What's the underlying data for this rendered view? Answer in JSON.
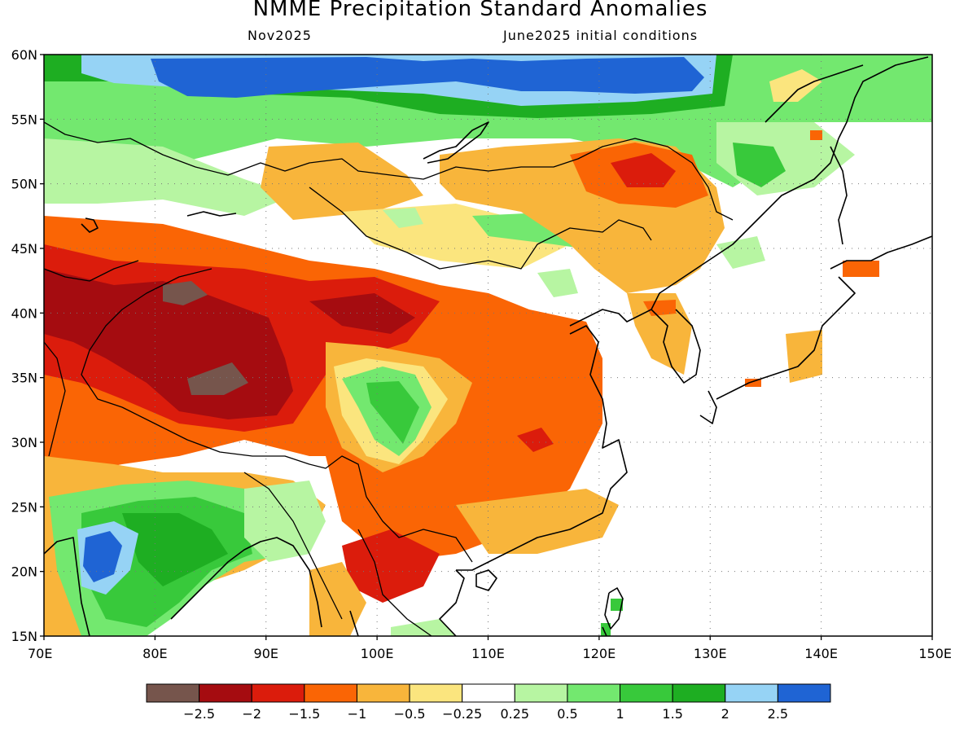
{
  "title": "NMME Precipitation Standard Anomalies",
  "subtitle_left": "Nov2025",
  "subtitle_right": "June2025 initial conditions",
  "latitude_labels": [
    "60N",
    "55N",
    "50N",
    "45N",
    "40N",
    "35N",
    "30N",
    "25N",
    "20N",
    "15N"
  ],
  "longitude_labels": [
    "70E",
    "80E",
    "90E",
    "100E",
    "110E",
    "120E",
    "130E",
    "140E",
    "150E"
  ],
  "colorbar": {
    "labels": [
      "−2.5",
      "−2",
      "−1.5",
      "−1",
      "−0.5",
      "−0.25",
      "0.25",
      "0.5",
      "1",
      "1.5",
      "2",
      "2.5"
    ],
    "colors": [
      "#76554c",
      "#a50c10",
      "#db1c0c",
      "#fa6505",
      "#f8b53b",
      "#fbe57e",
      "#ffffff",
      "#b7f5a2",
      "#73e86f",
      "#38c93b",
      "#1eae22",
      "#96d3f5",
      "#1f64d4"
    ]
  },
  "palette": {
    "brown": "#76554c",
    "darkred": "#a50c10",
    "red": "#db1c0c",
    "orange": "#fa6505",
    "ltorange": "#f8b53b",
    "yellow": "#fbe57e",
    "white": "#ffffff",
    "ltgreen": "#b7f5a2",
    "green": "#73e86f",
    "mgreen": "#38c93b",
    "dgreen": "#1eae22",
    "ltblue": "#96d3f5",
    "blue": "#1f64d4"
  }
}
